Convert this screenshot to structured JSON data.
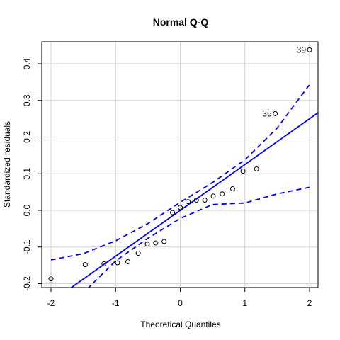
{
  "chart_data": {
    "type": "scatter",
    "title": "Normal Q-Q",
    "xlabel": "Theoretical Quantiles",
    "ylabel": "Standardized residuals",
    "xlim": [
      -2.0,
      2.0
    ],
    "ylim": [
      -0.2,
      0.42
    ],
    "xticks": [
      -2,
      -1,
      0,
      1,
      2
    ],
    "xtick_labels": [
      "-2",
      "-1",
      "0",
      "1",
      "2"
    ],
    "yticks": [
      -0.2,
      -0.1,
      0.0,
      0.1,
      0.2,
      0.3,
      0.4
    ],
    "ytick_labels": [
      "-0.2",
      "-0.1",
      "0.0",
      "0.1",
      "0.2",
      "0.3",
      "0.4"
    ],
    "grid": true,
    "colors": {
      "reference_line": "#0000ff",
      "points": "#000000",
      "grid": "#d3d3d3"
    },
    "points": [
      {
        "x": -2.0,
        "y": -0.187
      },
      {
        "x": -1.47,
        "y": -0.148
      },
      {
        "x": -1.18,
        "y": -0.146
      },
      {
        "x": -0.97,
        "y": -0.143
      },
      {
        "x": -0.81,
        "y": -0.14
      },
      {
        "x": -0.65,
        "y": -0.117
      },
      {
        "x": -0.51,
        "y": -0.092
      },
      {
        "x": -0.38,
        "y": -0.089
      },
      {
        "x": -0.25,
        "y": -0.085
      },
      {
        "x": -0.12,
        "y": -0.006
      },
      {
        "x": 0.0,
        "y": 0.008
      },
      {
        "x": 0.12,
        "y": 0.024
      },
      {
        "x": 0.25,
        "y": 0.028
      },
      {
        "x": 0.38,
        "y": 0.028
      },
      {
        "x": 0.51,
        "y": 0.039
      },
      {
        "x": 0.65,
        "y": 0.045
      },
      {
        "x": 0.81,
        "y": 0.059
      },
      {
        "x": 0.97,
        "y": 0.107
      },
      {
        "x": 1.18,
        "y": 0.113
      },
      {
        "x": 1.47,
        "y": 0.264
      },
      {
        "x": 2.0,
        "y": 0.438
      }
    ],
    "annotations": [
      {
        "label": "39",
        "x": 2.0,
        "y": 0.438
      },
      {
        "label": "35",
        "x": 1.47,
        "y": 0.264
      }
    ],
    "reference_line": {
      "intercept": 0.0,
      "slope": 0.125,
      "style": "solid"
    },
    "confidence_band_upper": [
      {
        "x": -2.0,
        "y": -0.135
      },
      {
        "x": -1.5,
        "y": -0.118
      },
      {
        "x": -1.0,
        "y": -0.083
      },
      {
        "x": -0.5,
        "y": -0.036
      },
      {
        "x": 0.0,
        "y": 0.022
      },
      {
        "x": 0.5,
        "y": 0.076
      },
      {
        "x": 1.0,
        "y": 0.138
      },
      {
        "x": 1.5,
        "y": 0.225
      },
      {
        "x": 2.0,
        "y": 0.343
      }
    ],
    "confidence_band_lower": [
      {
        "x": -2.0,
        "y": -0.343
      },
      {
        "x": -1.5,
        "y": -0.225
      },
      {
        "x": -1.0,
        "y": -0.138
      },
      {
        "x": -0.5,
        "y": -0.076
      },
      {
        "x": 0.0,
        "y": -0.022
      },
      {
        "x": 0.5,
        "y": 0.016
      },
      {
        "x": 1.0,
        "y": 0.02
      },
      {
        "x": 1.5,
        "y": 0.045
      },
      {
        "x": 2.0,
        "y": 0.063
      }
    ]
  }
}
